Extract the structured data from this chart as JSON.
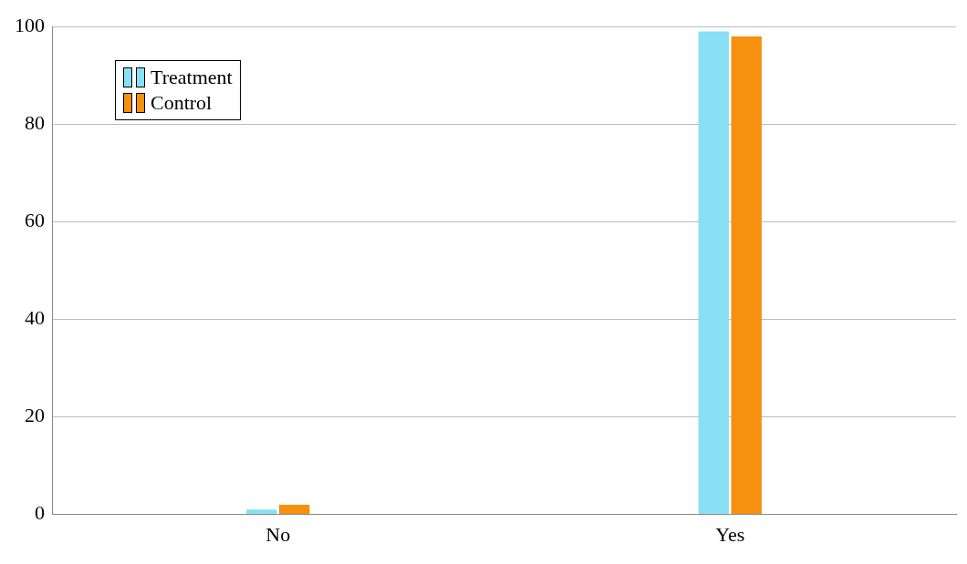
{
  "chart_data": {
    "type": "bar",
    "categories": [
      "No",
      "Yes"
    ],
    "series": [
      {
        "name": "Treatment",
        "color": "#87e0f5",
        "values": [
          1,
          99
        ]
      },
      {
        "name": "Control",
        "color": "#f7900f",
        "values": [
          2,
          98
        ]
      }
    ],
    "ylim": [
      0,
      100
    ],
    "yticks": [
      0,
      20,
      40,
      60,
      80,
      100
    ],
    "grid": "y",
    "legend": "top left"
  }
}
